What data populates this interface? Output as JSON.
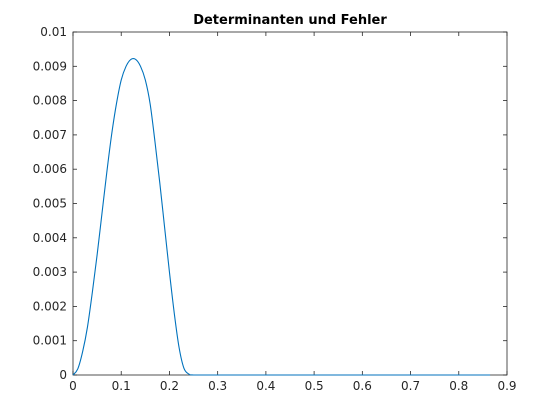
{
  "chart_data": {
    "type": "line",
    "title": "Determinanten und Fehler",
    "xlabel": "",
    "ylabel": "",
    "xlim": [
      0,
      0.9
    ],
    "ylim": [
      0,
      0.01
    ],
    "x_ticks": [
      "0",
      "0.1",
      "0.2",
      "0.3",
      "0.4",
      "0.5",
      "0.6",
      "0.7",
      "0.8",
      "0.9"
    ],
    "y_ticks": [
      "0",
      "0.001",
      "0.002",
      "0.003",
      "0.004",
      "0.005",
      "0.006",
      "0.007",
      "0.008",
      "0.009",
      "0.01"
    ],
    "grid": false,
    "box": true,
    "series": [
      {
        "color": "#0072bd",
        "x": [
          0,
          0.01,
          0.02,
          0.03,
          0.04,
          0.05,
          0.06,
          0.07,
          0.08,
          0.09,
          0.1,
          0.11,
          0.12,
          0.13,
          0.14,
          0.15,
          0.16,
          0.17,
          0.18,
          0.19,
          0.2,
          0.21,
          0.22,
          0.23,
          0.24,
          0.25,
          0.3,
          0.4,
          0.5,
          0.6,
          0.7,
          0.8,
          0.865
        ],
        "y": [
          0,
          0.00018,
          0.00068,
          0.0014,
          0.0024,
          0.0035,
          0.0047,
          0.0059,
          0.007,
          0.0079,
          0.0086,
          0.009,
          0.0092,
          0.0092,
          0.009,
          0.0086,
          0.0079,
          0.0068,
          0.0056,
          0.0043,
          0.003,
          0.0018,
          0.0008,
          0.0002,
          3e-05,
          0,
          0,
          0,
          0,
          0,
          0,
          0,
          0
        ]
      }
    ]
  }
}
